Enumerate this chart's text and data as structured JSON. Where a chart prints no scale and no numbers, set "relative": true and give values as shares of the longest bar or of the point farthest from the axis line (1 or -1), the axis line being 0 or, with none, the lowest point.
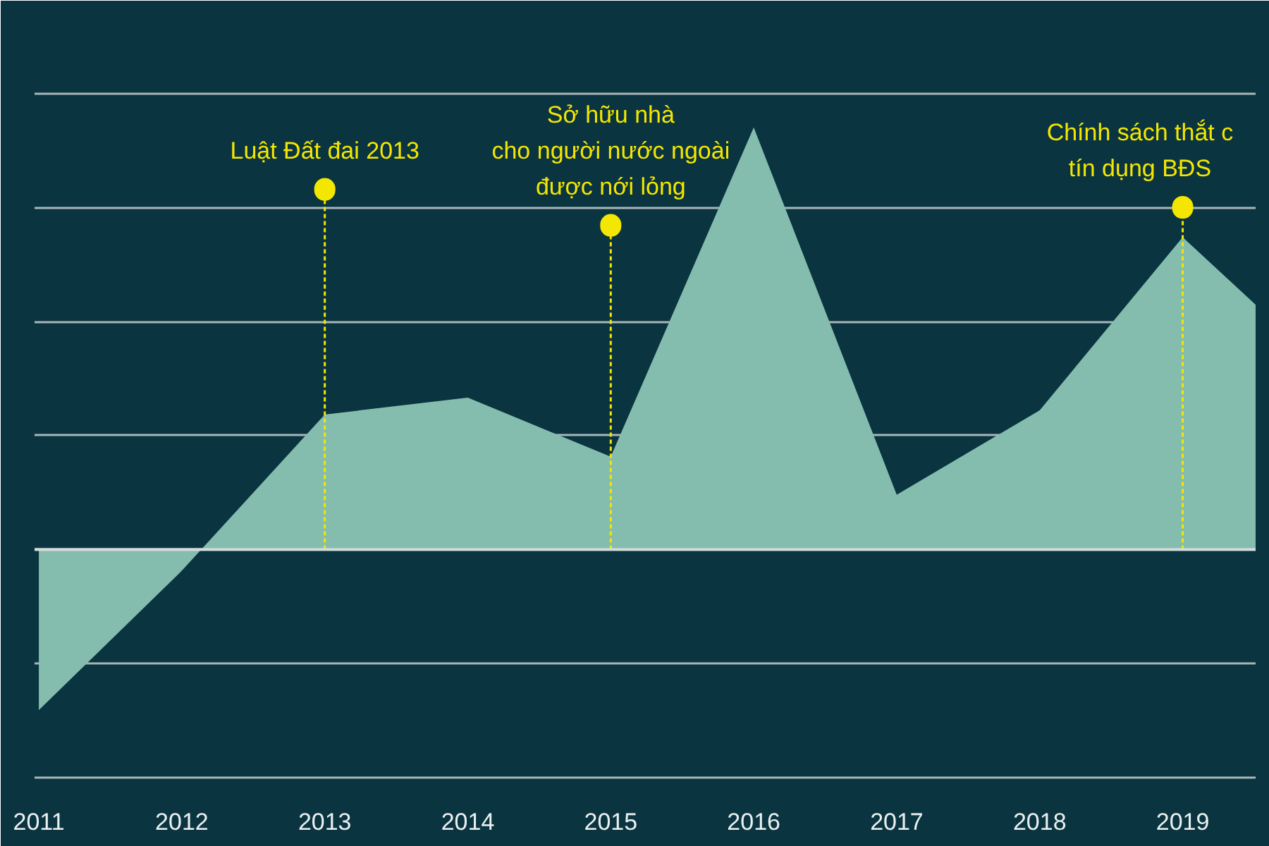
{
  "chart_data": {
    "type": "area",
    "relative": true,
    "x": [
      2011,
      2012,
      2013,
      2014,
      2015,
      2016,
      2017,
      2018,
      2019,
      2019.51
    ],
    "series": [
      {
        "color": "#84bdae",
        "values": [
          -0.38,
          -0.05,
          0.32,
          0.36,
          0.22,
          1,
          0.13,
          0.33,
          0.74,
          0.58
        ]
      }
    ],
    "xlim": [
      2010.97,
      2019.51
    ],
    "xticks": [
      2011,
      2012,
      2013,
      2014,
      2015,
      2016,
      2017,
      2018,
      2019
    ],
    "tick_labels": "x",
    "grid": "y",
    "ref_lines": [
      {
        "axis": "x",
        "value": 2013,
        "label": "Luật Đất đai 2013",
        "color": "#f3e600",
        "line_style": "dashed"
      },
      {
        "axis": "x",
        "value": 2015,
        "label": "Sở hữu nhà\ncho người nước ngoài\nđược nới lỏng",
        "color": "#f3e600",
        "line_style": "dashed"
      },
      {
        "axis": "x",
        "value": 2019,
        "label": "Chính sách thắt c\ntín dụng BĐS",
        "color": "#f3e600",
        "line_style": "dashed"
      }
    ]
  }
}
